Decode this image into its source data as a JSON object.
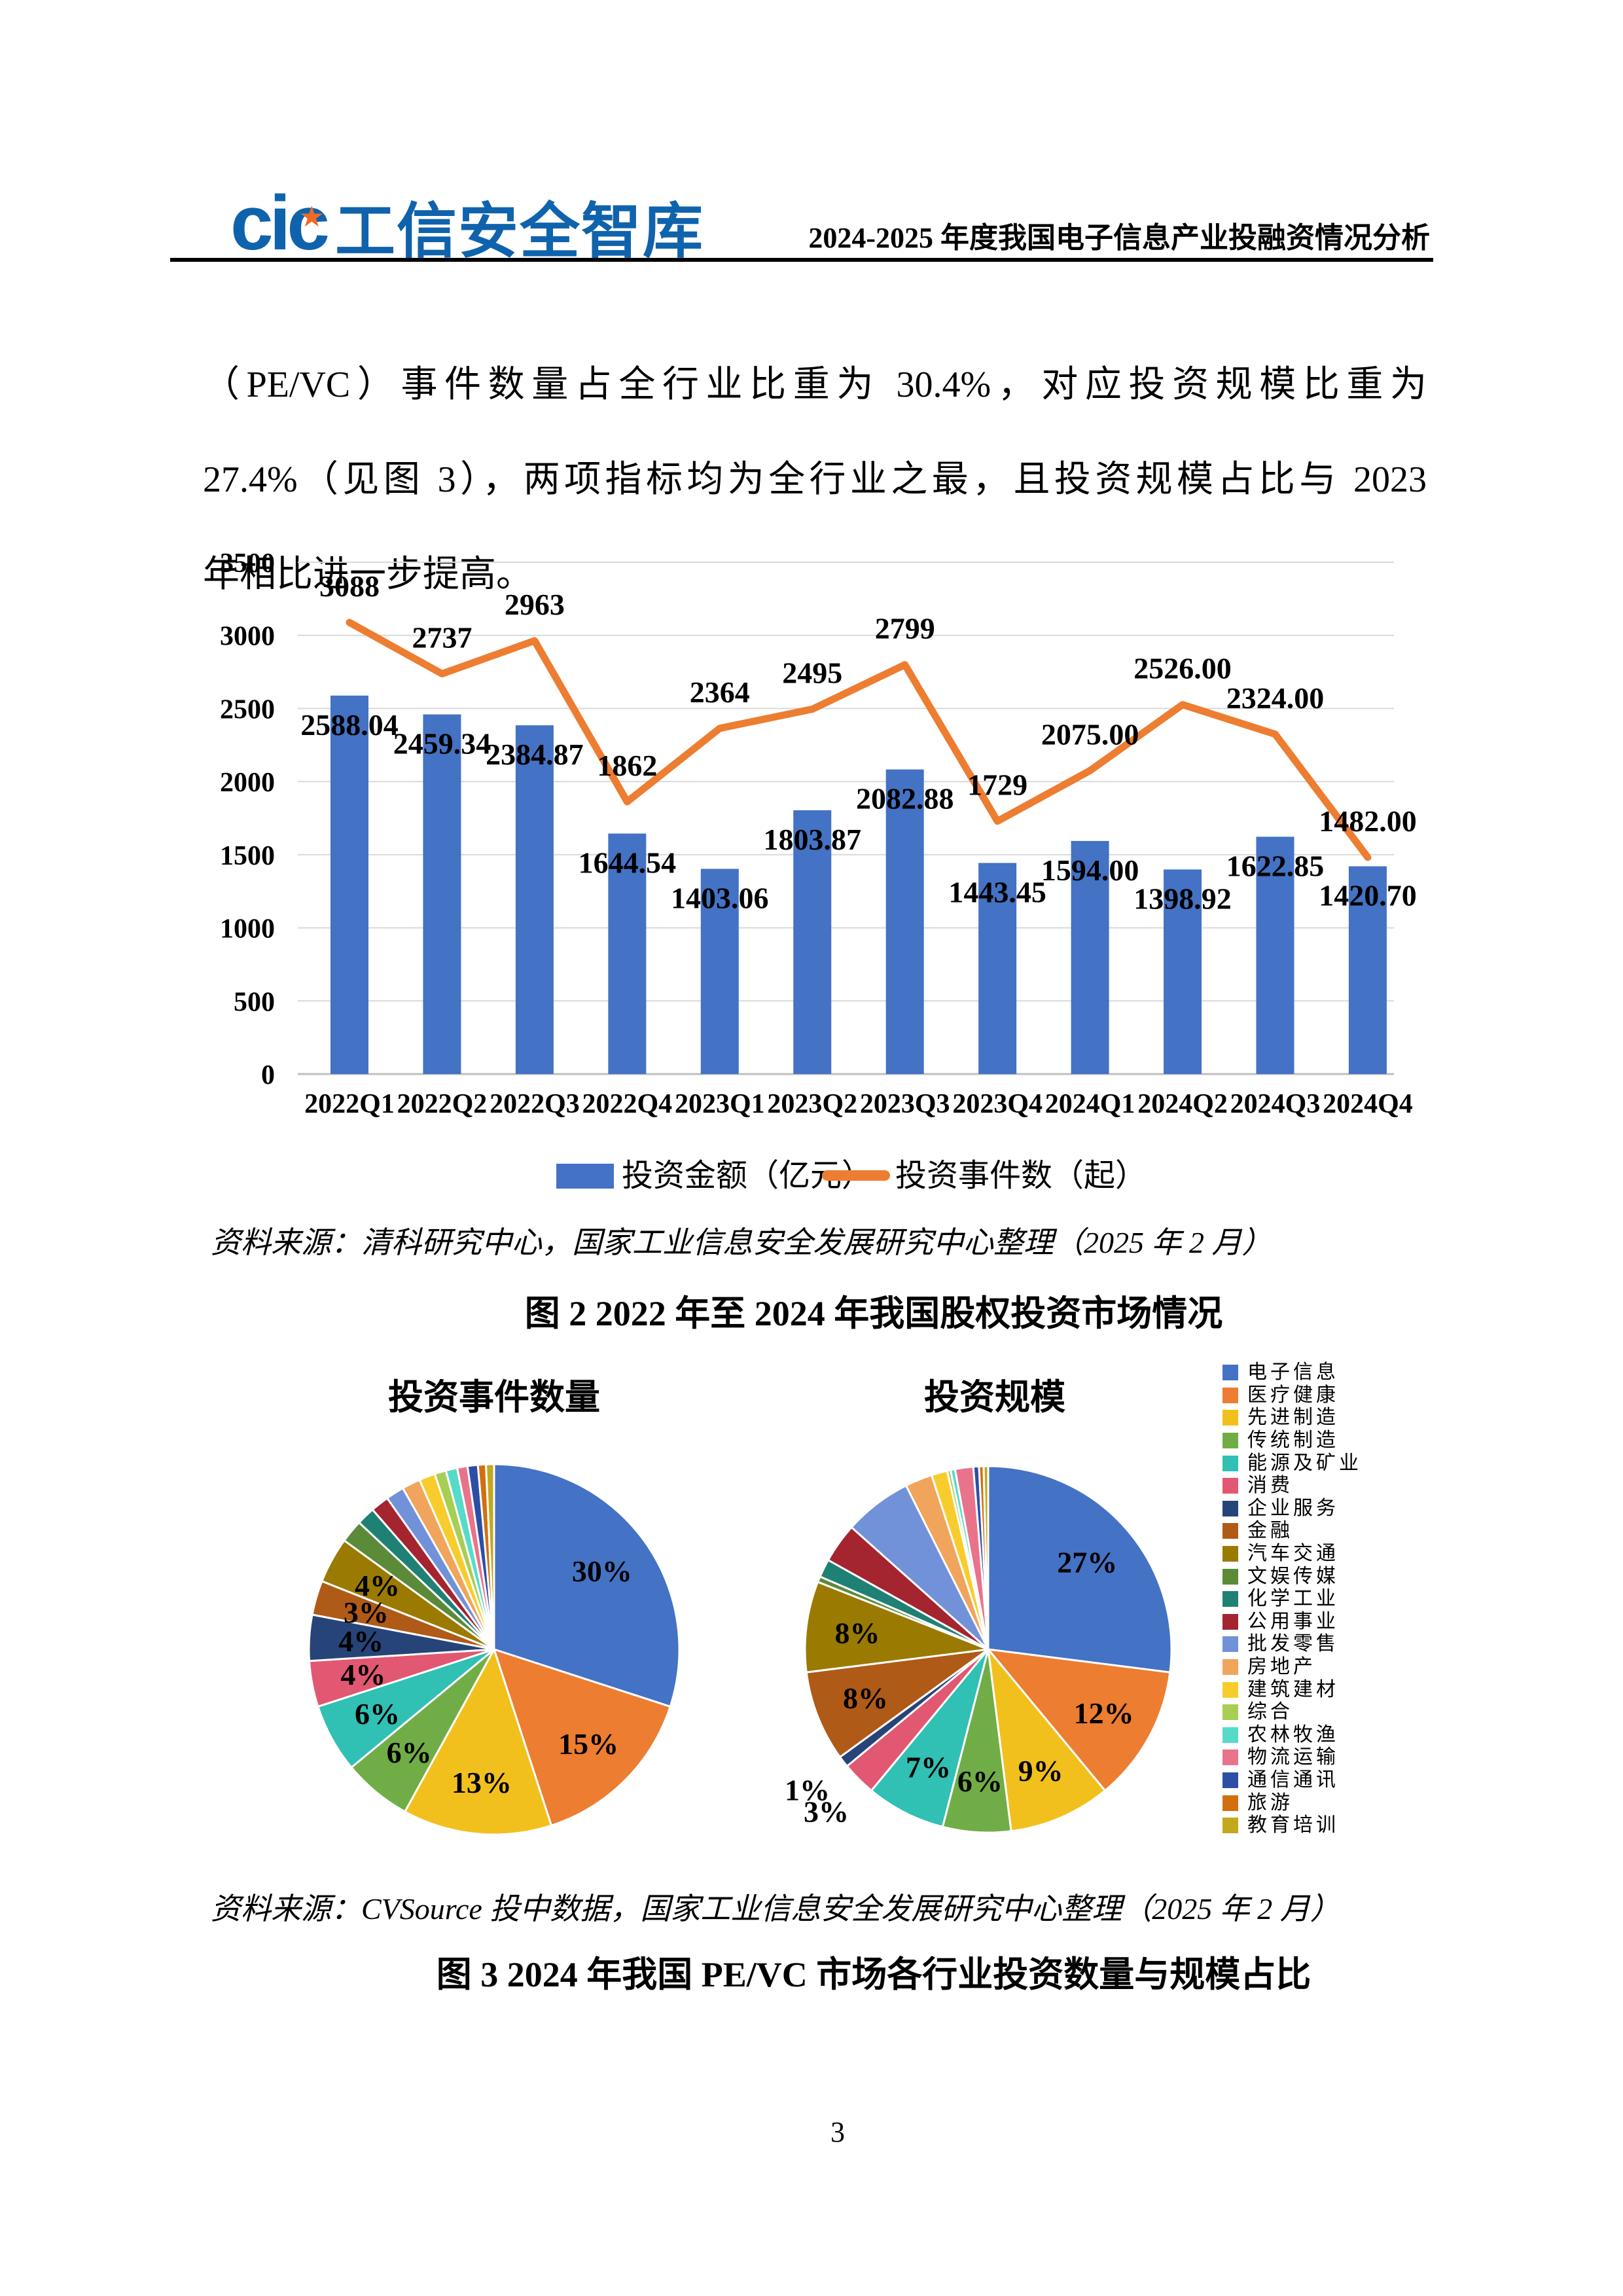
{
  "header": {
    "logo_cic": "cic",
    "logo_text": "工信安全智库",
    "doc_title": "2024-2025 年度我国电子信息产业投融资情况分析"
  },
  "paragraph": {
    "line1": "（PE/VC）事件数量占全行业比重为 30.4%，对应投资规模比重为",
    "line2": "27.4%（见图 3），两项指标均为全行业之最，且投资规模占比与 2023",
    "line3": "年相比进一步提高。"
  },
  "notes": {
    "source1": "资料来源：清科研究中心，国家工业信息安全发展研究中心整理（2025 年 2 月）",
    "fig2_caption": "图 2 2022 年至 2024 年我国股权投资市场情况",
    "source2": "资料来源：CVSource 投中数据，国家工业信息安全发展研究中心整理（2025 年 2 月）",
    "fig3_caption": "图 3 2024 年我国 PE/VC 市场各行业投资数量与规模占比"
  },
  "page_number": "3",
  "industry_legend": [
    {
      "label": "电子信息",
      "color": "#4472C4"
    },
    {
      "label": "医疗健康",
      "color": "#ED7D31"
    },
    {
      "label": "先进制造",
      "color": "#F2C01D"
    },
    {
      "label": "传统制造",
      "color": "#70AD47"
    },
    {
      "label": "能源及矿业",
      "color": "#30C0B4"
    },
    {
      "label": "消费",
      "color": "#E25771"
    },
    {
      "label": "企业服务",
      "color": "#264478"
    },
    {
      "label": "金融",
      "color": "#B05A18"
    },
    {
      "label": "汽车交通",
      "color": "#9A7A01"
    },
    {
      "label": "文娱传媒",
      "color": "#5B8A38"
    },
    {
      "label": "化学工业",
      "color": "#1F8074"
    },
    {
      "label": "公用事业",
      "color": "#A42430"
    },
    {
      "label": "批发零售",
      "color": "#7191D9"
    },
    {
      "label": "房地产",
      "color": "#F1A45B"
    },
    {
      "label": "建筑建材",
      "color": "#F8CC2C"
    },
    {
      "label": "综合",
      "color": "#A8CE53"
    },
    {
      "label": "农林牧渔",
      "color": "#57DBC9"
    },
    {
      "label": "物流运输",
      "color": "#E9738B"
    },
    {
      "label": "通信通讯",
      "color": "#2C4EA5"
    },
    {
      "label": "旅游",
      "color": "#D2700F"
    },
    {
      "label": "教育培训",
      "color": "#C3A81E"
    }
  ],
  "chart_data": [
    {
      "type": "bar+line",
      "title": "",
      "categories": [
        "2022Q1",
        "2022Q2",
        "2022Q3",
        "2022Q4",
        "2023Q1",
        "2023Q2",
        "2023Q3",
        "2023Q4",
        "2024Q1",
        "2024Q2",
        "2024Q3",
        "2024Q4"
      ],
      "series": [
        {
          "name": "投资金额（亿元）",
          "type": "bar",
          "color": "#4472C4",
          "values": [
            2588.04,
            2459.34,
            2384.87,
            1644.54,
            1403.06,
            1803.87,
            2082.88,
            1443.45,
            1594.0,
            1398.92,
            1622.85,
            1420.7
          ],
          "labels": [
            "2588.04",
            "2459.34",
            "2384.87",
            "1644.54",
            "1403.06",
            "1803.87",
            "2082.88",
            "1443.45",
            "1594.00",
            "1398.92",
            "1622.85",
            "1420.70"
          ]
        },
        {
          "name": "投资事件数（起）",
          "type": "line",
          "color": "#ED7D31",
          "values": [
            3088,
            2737,
            2963,
            1862,
            2364,
            2495,
            2799,
            1729,
            2075,
            2526,
            2324,
            1482
          ],
          "labels": [
            "3088",
            "2737",
            "2963",
            "1862",
            "2364",
            "2495",
            "2799",
            "1729",
            "2075.00",
            "2526.00",
            "2324.00",
            "1482.00"
          ]
        }
      ],
      "ylim": [
        0,
        3500
      ],
      "yticks": [
        0,
        500,
        1000,
        1500,
        2000,
        2500,
        3000,
        3500
      ],
      "grid": true,
      "legend_position": "bottom"
    },
    {
      "type": "pie",
      "title": "投资事件数量",
      "slices": [
        {
          "value": 30,
          "pct": "30%"
        },
        {
          "value": 15,
          "pct": "15%"
        },
        {
          "value": 13,
          "pct": "13%"
        },
        {
          "value": 6,
          "pct": "6%"
        },
        {
          "value": 6,
          "pct": "6%"
        },
        {
          "value": 4,
          "pct": "4%"
        },
        {
          "value": 4,
          "pct": "4%"
        },
        {
          "value": 3,
          "pct": "3%"
        },
        {
          "value": 4,
          "pct": "4%"
        },
        {
          "value": 2.0,
          "pct": ""
        },
        {
          "value": 1.6,
          "pct": ""
        },
        {
          "value": 1.6,
          "pct": ""
        },
        {
          "value": 1.6,
          "pct": ""
        },
        {
          "value": 1.6,
          "pct": ""
        },
        {
          "value": 1.4,
          "pct": ""
        },
        {
          "value": 1.0,
          "pct": ""
        },
        {
          "value": 1.0,
          "pct": ""
        },
        {
          "value": 0.9,
          "pct": ""
        },
        {
          "value": 0.9,
          "pct": ""
        },
        {
          "value": 0.7,
          "pct": ""
        },
        {
          "value": 0.7,
          "pct": ""
        }
      ]
    },
    {
      "type": "pie",
      "title": "投资规模",
      "slices": [
        {
          "value": 27,
          "pct": "27%"
        },
        {
          "value": 12,
          "pct": "12%"
        },
        {
          "value": 9,
          "pct": "9%"
        },
        {
          "value": 6,
          "pct": "6%"
        },
        {
          "value": 7,
          "pct": "7%"
        },
        {
          "value": 3,
          "pct": "3%",
          "lr": 1.25
        },
        {
          "value": 1,
          "pct": "1%",
          "lr": 1.25
        },
        {
          "value": 8,
          "pct": "8%"
        },
        {
          "value": 8,
          "pct": "8%"
        },
        {
          "value": 0.5,
          "pct": ""
        },
        {
          "value": 1.6,
          "pct": ""
        },
        {
          "value": 3.5,
          "pct": ""
        },
        {
          "value": 6.0,
          "pct": ""
        },
        {
          "value": 2.4,
          "pct": ""
        },
        {
          "value": 1.4,
          "pct": ""
        },
        {
          "value": 0.3,
          "pct": ""
        },
        {
          "value": 0.4,
          "pct": ""
        },
        {
          "value": 1.6,
          "pct": ""
        },
        {
          "value": 0.5,
          "pct": ""
        },
        {
          "value": 0.4,
          "pct": ""
        },
        {
          "value": 0.4,
          "pct": ""
        }
      ]
    }
  ]
}
